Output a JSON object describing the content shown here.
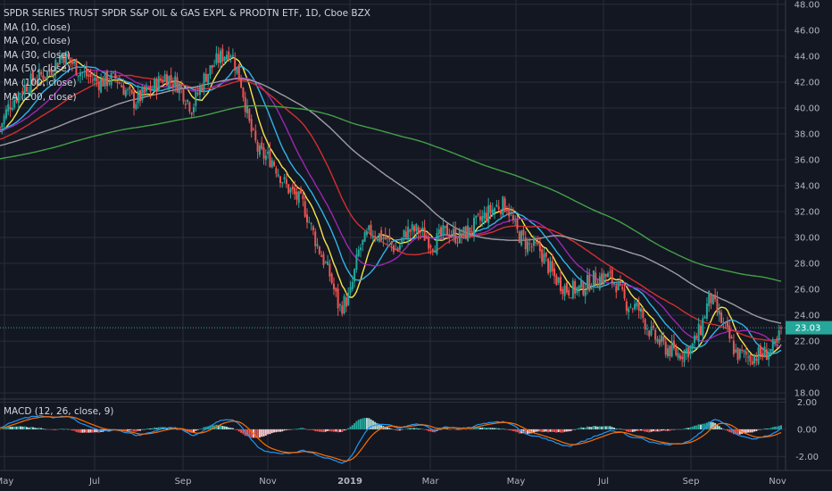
{
  "legend": {
    "title": "SPDR SERIES TRUST SPDR S&P OIL & GAS EXPL & PRODTN ETF, 1D, Cboe BZX",
    "mas": [
      "MA (10, close)",
      "MA (20, close)",
      "MA (30, close)",
      "MA (50, close)",
      "MA (100, close)",
      "MA (200, close)"
    ]
  },
  "macd_label": "MACD (12, 26, close, 9)",
  "last_price_label": "23.03",
  "colors": {
    "background": "#131722",
    "grid": "#2a2e39",
    "up": "#26a69a",
    "down": "#ef5350",
    "ma10": "#f7e64a",
    "ma20": "#2fb5e8",
    "ma30": "#9c27b0",
    "ma50": "#d32f2f",
    "ma100": "#9e9ea4",
    "ma200": "#43a047",
    "macd_line": "#2196f3",
    "signal_line": "#ff6d00",
    "last_price": "#26a69a"
  },
  "chart_data": [
    {
      "type": "candlestick",
      "title": "SPDR SERIES TRUST SPDR S&P OIL & GAS EXPL & PRODTN ETF, 1D, Cboe BZX",
      "x_tick_labels": [
        "May",
        "Jul",
        "Sep",
        "Nov",
        "2019",
        "Mar",
        "May",
        "Jul",
        "Sep",
        "Nov"
      ],
      "y_tick_labels": [
        "48.00",
        "46.00",
        "44.00",
        "42.00",
        "40.00",
        "38.00",
        "36.00",
        "34.00",
        "32.00",
        "30.00",
        "28.00",
        "26.00",
        "24.00",
        "22.00",
        "20.00",
        "18.00"
      ],
      "ylim": [
        17.8,
        48.2
      ],
      "last_price": 23.03,
      "price_path": [
        [
          0,
          38.5
        ],
        [
          10,
          40.2
        ],
        [
          25,
          41.5
        ],
        [
          40,
          42.3
        ],
        [
          55,
          42.8
        ],
        [
          70,
          44.2
        ],
        [
          90,
          42.8
        ],
        [
          110,
          42.0
        ],
        [
          130,
          42.3
        ],
        [
          150,
          40.5
        ],
        [
          170,
          41.5
        ],
        [
          185,
          42.5
        ],
        [
          200,
          41.8
        ],
        [
          215,
          40.0
        ],
        [
          230,
          42.5
        ],
        [
          245,
          43.8
        ],
        [
          258,
          44.5
        ],
        [
          270,
          42.0
        ],
        [
          280,
          38.5
        ],
        [
          290,
          36.5
        ],
        [
          305,
          36.0
        ],
        [
          320,
          34.0
        ],
        [
          340,
          32.5
        ],
        [
          355,
          29.5
        ],
        [
          370,
          27.0
        ],
        [
          380,
          24.5
        ],
        [
          392,
          25.5
        ],
        [
          402,
          29.0
        ],
        [
          415,
          30.5
        ],
        [
          430,
          30.0
        ],
        [
          445,
          29.0
        ],
        [
          455,
          30.5
        ],
        [
          470,
          30.5
        ],
        [
          485,
          29.5
        ],
        [
          500,
          30.5
        ],
        [
          515,
          30.0
        ],
        [
          530,
          30.8
        ],
        [
          545,
          31.8
        ],
        [
          558,
          32.5
        ],
        [
          568,
          32.5
        ],
        [
          578,
          30.5
        ],
        [
          590,
          29.5
        ],
        [
          605,
          29.0
        ],
        [
          620,
          27.0
        ],
        [
          635,
          26.0
        ],
        [
          650,
          26.0
        ],
        [
          665,
          26.8
        ],
        [
          680,
          27.0
        ],
        [
          690,
          26.5
        ],
        [
          700,
          25.0
        ],
        [
          715,
          24.5
        ],
        [
          730,
          22.5
        ],
        [
          745,
          21.5
        ],
        [
          760,
          21.0
        ],
        [
          775,
          21.5
        ],
        [
          785,
          23.0
        ],
        [
          795,
          25.5
        ],
        [
          805,
          24.0
        ],
        [
          815,
          22.5
        ],
        [
          825,
          21.0
        ],
        [
          840,
          20.8
        ],
        [
          855,
          21.0
        ],
        [
          870,
          21.5
        ],
        [
          875,
          23.0
        ]
      ],
      "moving_averages": [
        {
          "name": "MA (10, close)",
          "color_key": "ma10"
        },
        {
          "name": "MA (20, close)",
          "color_key": "ma20"
        },
        {
          "name": "MA (30, close)",
          "color_key": "ma30"
        },
        {
          "name": "MA (50, close)",
          "color_key": "ma50"
        },
        {
          "name": "MA (100, close)",
          "color_key": "ma100"
        },
        {
          "name": "MA (200, close)",
          "color_key": "ma200"
        }
      ]
    },
    {
      "type": "macd",
      "title": "MACD (12, 26, close, 9)",
      "y_tick_labels": [
        "2.00",
        "0.00",
        "-2.00"
      ],
      "ylim": [
        -2.9,
        2.1
      ]
    }
  ]
}
